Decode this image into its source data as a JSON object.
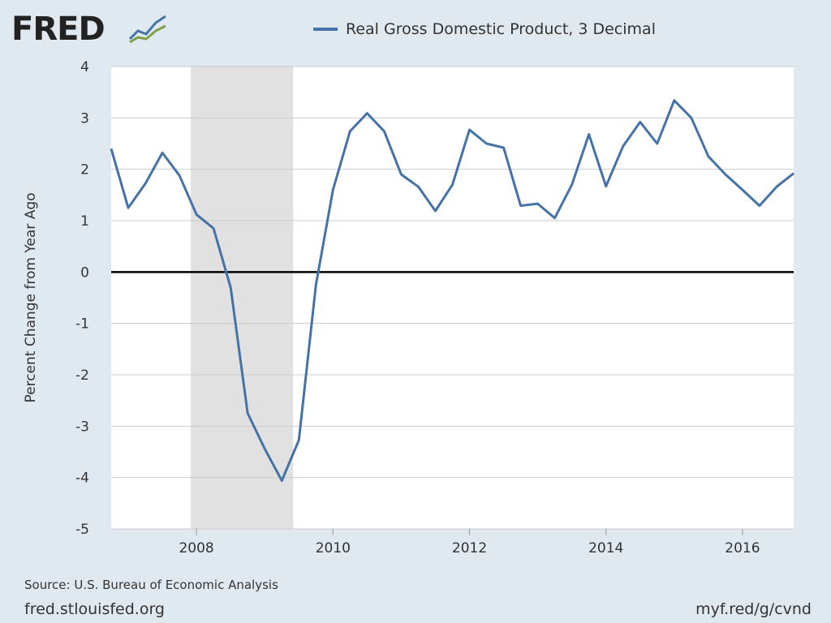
{
  "branding": {
    "logo_text": "FRED"
  },
  "footer": {
    "source": "Source: U.S. Bureau of Economic Analysis",
    "site": "fred.stlouisfed.org",
    "shortlink": "myf.red/g/cvnd"
  },
  "colors": {
    "series": "#4572a7",
    "recession": "#e1e1e1",
    "background": "#e1e9f0",
    "plot": "#ffffff",
    "zero_line": "#000000"
  },
  "chart_data": {
    "type": "line",
    "title": "",
    "xlabel": "",
    "ylabel": "Percent Change from Year Ago",
    "xlim": [
      2006.75,
      2016.75
    ],
    "ylim": [
      -5,
      4
    ],
    "x_ticks": [
      2008,
      2010,
      2012,
      2014,
      2016
    ],
    "x_tick_labels": [
      "2008",
      "2010",
      "2012",
      "2014",
      "2016"
    ],
    "y_ticks": [
      4,
      3,
      2,
      1,
      0,
      -1,
      -2,
      -3,
      -4,
      -5
    ],
    "y_tick_labels": [
      "4",
      "3",
      "2",
      "1",
      "0",
      "-1",
      "-2",
      "-3",
      "-4",
      "-5"
    ],
    "grid": true,
    "legend_position": "top",
    "recession_shading": [
      {
        "start": 2007.9167,
        "end": 2009.4167
      }
    ],
    "series": [
      {
        "name": "Real Gross Domestic Product, 3 Decimal",
        "x": [
          2006.75,
          2007.0,
          2007.25,
          2007.5,
          2007.75,
          2008.0,
          2008.25,
          2008.5,
          2008.75,
          2009.0,
          2009.25,
          2009.5,
          2009.75,
          2010.0,
          2010.25,
          2010.5,
          2010.75,
          2011.0,
          2011.25,
          2011.5,
          2011.75,
          2012.0,
          2012.25,
          2012.5,
          2012.75,
          2013.0,
          2013.25,
          2013.5,
          2013.75,
          2014.0,
          2014.25,
          2014.5,
          2014.75,
          2015.0,
          2015.25,
          2015.5,
          2015.75,
          2016.0,
          2016.25,
          2016.5,
          2016.75
        ],
        "values": [
          2.4,
          1.25,
          1.72,
          2.32,
          1.88,
          1.12,
          0.85,
          -0.3,
          -2.75,
          -3.44,
          -4.06,
          -3.27,
          -0.25,
          1.6,
          2.74,
          3.09,
          2.74,
          1.9,
          1.66,
          1.19,
          1.7,
          2.77,
          2.5,
          2.42,
          1.29,
          1.33,
          1.05,
          1.7,
          2.68,
          1.67,
          2.45,
          2.92,
          2.5,
          3.34,
          3.0,
          2.25,
          1.9,
          1.6,
          1.29,
          1.66,
          1.92
        ]
      }
    ]
  }
}
